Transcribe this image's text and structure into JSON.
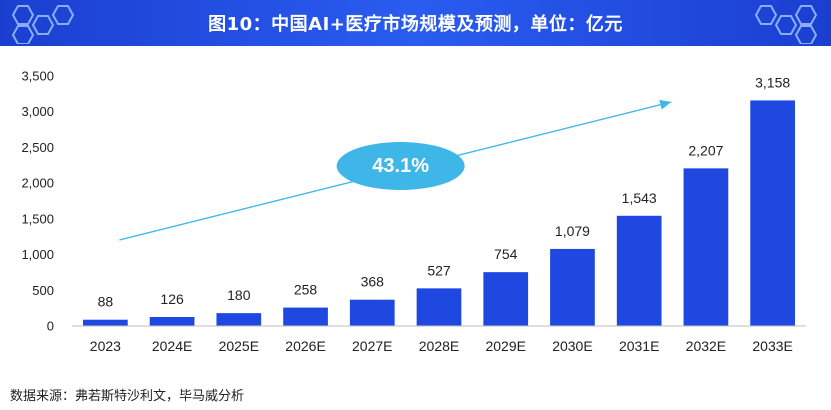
{
  "header": {
    "title": "图10：中国AI+医疗市场规模及预测，单位：亿元"
  },
  "annotation": {
    "cagr_label": "43.1%"
  },
  "footer": {
    "source": "数据来源：弗若斯特沙利文，毕马威分析"
  },
  "chart_data": {
    "type": "bar",
    "title": "图10：中国AI+医疗市场规模及预测，单位：亿元",
    "xlabel": "",
    "ylabel": "",
    "categories": [
      "2023",
      "2024E",
      "2025E",
      "2026E",
      "2027E",
      "2028E",
      "2029E",
      "2030E",
      "2031E",
      "2032E",
      "2033E"
    ],
    "values": [
      88,
      126,
      180,
      258,
      368,
      527,
      754,
      1079,
      1543,
      2207,
      3158
    ],
    "value_labels": [
      "88",
      "126",
      "180",
      "258",
      "368",
      "527",
      "754",
      "1,079",
      "1,543",
      "2,207",
      "3,158"
    ],
    "ylim": [
      0,
      3500
    ],
    "yticks": [
      0,
      500,
      1000,
      1500,
      2000,
      2500,
      3000,
      3500
    ],
    "ytick_labels": [
      "0",
      "500",
      "1,000",
      "1,500",
      "2,000",
      "2,500",
      "3,000",
      "3,500"
    ],
    "grid": false,
    "legend": "none",
    "colors": {
      "bar": "#1f48e0",
      "trend_arrow": "#3fb6e8",
      "cagr_bubble": "#3fb6e8",
      "banner": "#1f48e0"
    }
  }
}
